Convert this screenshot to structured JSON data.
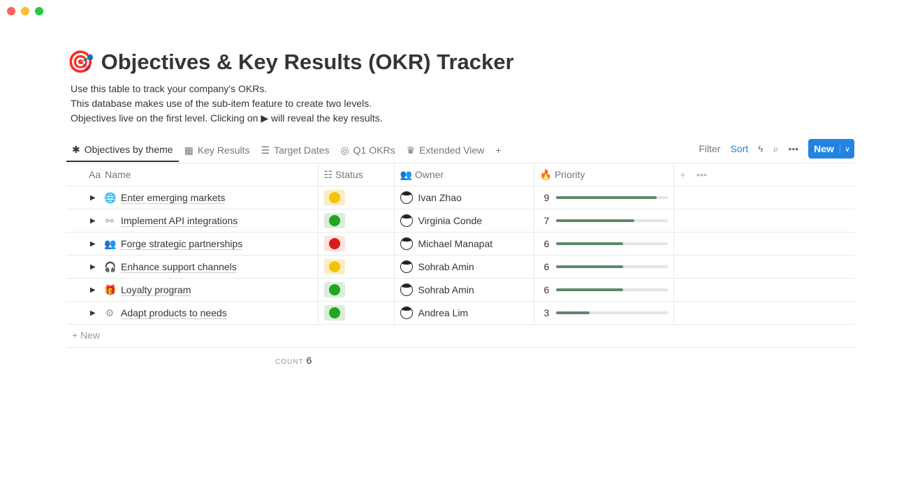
{
  "page": {
    "icon": "🎯",
    "title": "Objectives & Key Results (OKR) Tracker",
    "description": [
      "Use this table to track your company's OKRs.",
      "This database makes use of the sub-item feature to create two levels.",
      "Objectives live on the first level. Clicking on ▶ will reveal the key results."
    ]
  },
  "tabs": [
    {
      "label": "Objectives by theme",
      "icon": "✱",
      "active": true
    },
    {
      "label": "Key Results",
      "icon": "▦"
    },
    {
      "label": "Target Dates",
      "icon": "☰"
    },
    {
      "label": "Q1 OKRs",
      "icon": "◎"
    },
    {
      "label": "Extended View",
      "icon": "♛"
    }
  ],
  "toolbar": {
    "filter": "Filter",
    "sort": "Sort",
    "new": "New",
    "add_tab": "+"
  },
  "columns": {
    "name": "Name",
    "name_icon": "Aa",
    "status": "Status",
    "owner": "Owner",
    "priority": "Priority"
  },
  "rows": [
    {
      "name": "Enter emerging markets",
      "icon": "🌐",
      "status": "yellow",
      "owner": "Ivan Zhao",
      "priority": 9
    },
    {
      "name": "Implement API integrations",
      "icon": "⚯",
      "status": "green",
      "owner": "Virginia Conde",
      "priority": 7
    },
    {
      "name": "Forge strategic partnerships",
      "icon": "👥",
      "status": "red",
      "owner": "Michael Manapat",
      "priority": 6
    },
    {
      "name": "Enhance support channels",
      "icon": "🎧",
      "status": "yellow",
      "owner": "Sohrab Amin",
      "priority": 6
    },
    {
      "name": "Loyalty program",
      "icon": "🎁",
      "status": "green",
      "owner": "Sohrab Amin",
      "priority": 6
    },
    {
      "name": "Adapt products to needs",
      "icon": "⚙",
      "status": "green",
      "owner": "Andrea Lim",
      "priority": 3
    }
  ],
  "priority_max": 10,
  "status_colors": {
    "yellow": {
      "dot": "#f5c400",
      "bg": "#fbecc6"
    },
    "green": {
      "dot": "#1fa81f",
      "bg": "#dbeddb"
    },
    "red": {
      "dot": "#d91c1c",
      "bg": "#ffe2dd"
    }
  },
  "footer": {
    "add_new": "+ New",
    "count_label": "COUNT",
    "count_value": "6"
  }
}
